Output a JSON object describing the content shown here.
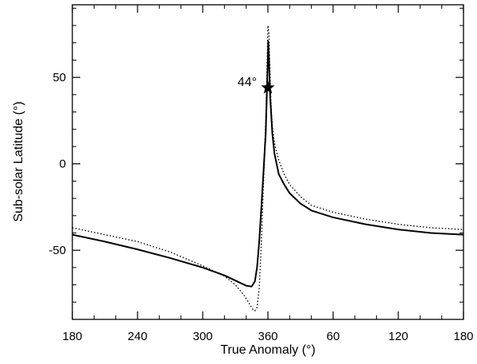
{
  "chart_data": {
    "type": "line",
    "xlabel": "True Anomaly (°)",
    "ylabel": "Sub-solar Latitude (°)",
    "x_ticks": [
      {
        "value": 0,
        "label": "180"
      },
      {
        "value": 60,
        "label": "240"
      },
      {
        "value": 120,
        "label": "300"
      },
      {
        "value": 180,
        "label": "360"
      },
      {
        "value": 240,
        "label": "60"
      },
      {
        "value": 300,
        "label": "120"
      },
      {
        "value": 360,
        "label": "180"
      }
    ],
    "y_ticks": [
      {
        "value": 50,
        "label": "50"
      },
      {
        "value": 0,
        "label": "0"
      },
      {
        "value": -50,
        "label": "-50"
      }
    ],
    "xlim": [
      0,
      360
    ],
    "ylim": [
      -90,
      92
    ],
    "grid": false,
    "series": [
      {
        "style": "solid",
        "color": "#000000",
        "x": [
          0,
          30,
          60,
          90,
          120,
          140,
          150,
          160,
          165,
          168,
          170,
          172,
          174,
          176,
          178,
          179,
          180,
          180.3,
          181,
          182,
          184,
          186,
          190,
          195,
          200,
          210,
          220,
          240,
          270,
          300,
          330,
          360
        ],
        "y": [
          -41,
          -45,
          -49.5,
          -54.5,
          -60,
          -64.5,
          -67.5,
          -70.5,
          -71,
          -68,
          -60,
          -45,
          -25,
          -4,
          18,
          40,
          62,
          71,
          60,
          40,
          18,
          6,
          -6,
          -12,
          -17,
          -23,
          -27,
          -31,
          -35,
          -38,
          -40,
          -41
        ]
      },
      {
        "style": "dotted",
        "color": "#000000",
        "x": [
          0,
          30,
          60,
          90,
          120,
          140,
          150,
          158,
          163,
          166,
          168,
          170,
          172,
          174,
          176,
          178,
          179,
          180,
          181,
          182,
          183,
          184,
          186,
          190,
          195,
          200,
          210,
          220,
          240,
          270,
          300,
          330,
          360
        ],
        "y": [
          -37,
          -41,
          -45,
          -51,
          -59,
          -65,
          -70,
          -76,
          -81,
          -84,
          -85,
          -83,
          -72,
          -45,
          -10,
          25,
          50,
          80,
          75,
          50,
          32,
          22,
          12,
          2,
          -6,
          -12,
          -19,
          -24,
          -28,
          -32,
          -35,
          -37,
          -38
        ]
      }
    ],
    "annotations": [
      {
        "text": "44°",
        "x": 180,
        "y": 44,
        "marker": "star"
      }
    ]
  }
}
